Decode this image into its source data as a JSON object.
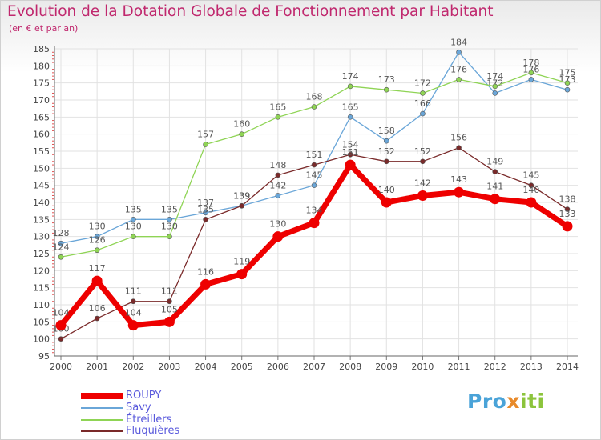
{
  "header": {
    "title": "Evolution de la Dotation Globale de Fonctionnement par Habitant",
    "subtitle": "(en € et par an)"
  },
  "brand": {
    "part1": "Pro",
    "part2": "x",
    "part3": "iti"
  },
  "chart_data": {
    "type": "line",
    "title": "Evolution de la Dotation Globale de Fonctionnement par Habitant",
    "subtitle": "(en € et par an)",
    "xlabel": "",
    "ylabel": "",
    "ylim": [
      95,
      185
    ],
    "yticks": [
      95,
      100,
      105,
      110,
      115,
      120,
      125,
      130,
      135,
      140,
      145,
      150,
      155,
      160,
      165,
      170,
      175,
      180,
      185
    ],
    "grid": true,
    "legend_position": "bottom-left",
    "x": [
      "2000",
      "2001",
      "2002",
      "2003",
      "2004",
      "2005",
      "2006",
      "2007",
      "2008",
      "2009",
      "2010",
      "2011",
      "2012",
      "2013",
      "2014"
    ],
    "series": [
      {
        "name": "Savy",
        "color": "#6aa6d8",
        "values": [
          128,
          130,
          135,
          135,
          137,
          139,
          142,
          145,
          165,
          158,
          166,
          184,
          172,
          176,
          173
        ]
      },
      {
        "name": "Étreillers",
        "color": "#8fd455",
        "values": [
          124,
          126,
          130,
          130,
          157,
          160,
          165,
          168,
          174,
          173,
          172,
          176,
          174,
          178,
          175
        ]
      },
      {
        "name": "Fluquières",
        "color": "#7a2a2a",
        "values": [
          100,
          106,
          111,
          111,
          135,
          139,
          148,
          151,
          154,
          152,
          152,
          156,
          149,
          145,
          138
        ]
      },
      {
        "name": "ROUPY",
        "color": "#ee0000",
        "values": [
          104,
          117,
          104,
          105,
          116,
          119,
          130,
          134,
          151,
          140,
          142,
          143,
          141,
          140,
          133
        ]
      }
    ],
    "legend": [
      "ROUPY",
      "Savy",
      "Étreillers",
      "Fluquières"
    ]
  }
}
